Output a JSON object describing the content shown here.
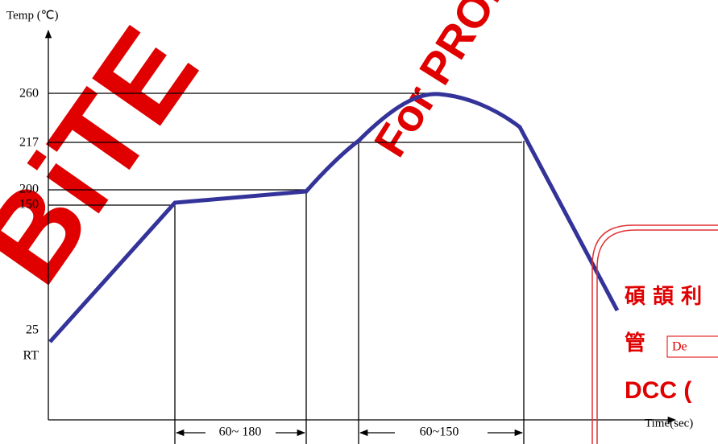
{
  "axis": {
    "y_label": "Temp (℃)",
    "x_label": "Time(sec)"
  },
  "y_levels": [
    "260",
    "217",
    "200",
    "150",
    "25",
    "RT"
  ],
  "intervals": [
    "60~ 180",
    "60~150"
  ],
  "watermarks": [
    "BiTE",
    "For PROM"
  ],
  "stamp": {
    "line1": "碩 頡 利",
    "line2": "管",
    "box": "De",
    "line3": "DCC ("
  }
}
